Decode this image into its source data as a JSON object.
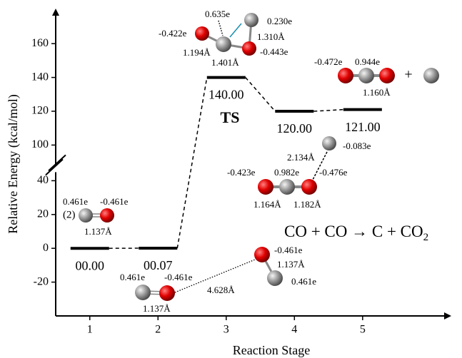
{
  "chart_data": {
    "type": "energy-levels",
    "x_label": "Reaction Stage",
    "y_label": "Relative Energy (kcal/mol)",
    "x": [
      1,
      2,
      3,
      4,
      5
    ],
    "values": [
      0,
      0.07,
      140,
      120,
      121
    ],
    "value_labels": [
      "00.00",
      "00.07",
      "140.00",
      "120.00",
      "121.00"
    ],
    "xlim": [
      0.5,
      6.3
    ],
    "xticks": [
      1,
      2,
      3,
      4,
      5
    ],
    "ylim": [
      -40,
      180
    ],
    "ybreak": [
      40,
      100
    ],
    "yticks": [
      -20,
      0,
      20,
      40,
      100,
      120,
      140,
      160
    ],
    "color": "#000000",
    "annotations": [
      "0.461e",
      "-0.461e",
      "(2)",
      "1.137Å",
      "0.461e",
      "-0.461e",
      "1.137Å",
      "4.628Å",
      "-0.461e",
      "1.137Å",
      "0.461e",
      "0.635e",
      "0.230e",
      "-0.422e",
      "1.310Å",
      "1.194Å",
      "-0.443e",
      "1.401Å",
      "TS",
      "-0.472e",
      "0.944e",
      "+",
      "1.160Å",
      "2.134Å",
      "-0.083e",
      "-0.423e",
      "0.982e",
      "-0.476e",
      "1.164Å",
      "1.182Å",
      "CO + CO → C + CO",
      "2"
    ]
  }
}
